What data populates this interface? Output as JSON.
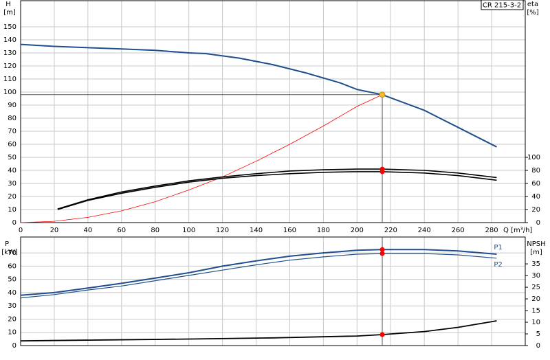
{
  "chart_data": [
    {
      "type": "line",
      "annotation": "CR 215-3-2",
      "y_label": "H",
      "y_unit": "[m]",
      "y2_label": "eta",
      "y2_unit": "[%]",
      "x_label": "Q [m³/h]",
      "xlim": [
        0,
        300
      ],
      "xticks": [
        0,
        20,
        40,
        60,
        80,
        100,
        120,
        140,
        160,
        180,
        200,
        220,
        240,
        260,
        280
      ],
      "ylim": [
        0,
        170
      ],
      "yticks": [
        0,
        10,
        20,
        30,
        40,
        50,
        60,
        70,
        80,
        90,
        100,
        110,
        120,
        130,
        140,
        150
      ],
      "y2lim": [
        0,
        340
      ],
      "y2ticks": [
        0,
        20,
        40,
        60,
        80,
        100
      ],
      "grid": true,
      "operating_point": {
        "x": 215,
        "y": 98,
        "color": "#f5b82e"
      },
      "series": [
        {
          "color": "#1f4e8c",
          "width": 2,
          "x": [
            0,
            20,
            40,
            60,
            80,
            100,
            110,
            130,
            150,
            170,
            190,
            200,
            215,
            240,
            260,
            283
          ],
          "values": [
            136.5,
            135,
            134,
            133,
            132,
            130,
            129.5,
            126,
            121,
            114.5,
            107,
            102,
            98,
            86,
            73,
            58
          ]
        },
        {
          "color": "#ff0000",
          "width": 0.8,
          "x": [
            0,
            20,
            40,
            60,
            80,
            100,
            120,
            140,
            160,
            180,
            200,
            215
          ],
          "values": [
            0,
            1,
            4,
            9,
            16,
            25,
            35,
            47,
            60,
            74,
            89,
            98
          ]
        },
        {
          "color": "#000000",
          "width": 1.6,
          "axis": "y2",
          "x": [
            22,
            40,
            60,
            80,
            100,
            120,
            140,
            160,
            180,
            200,
            215,
            240,
            260,
            283
          ],
          "values": [
            21,
            35,
            47,
            56,
            64,
            70,
            75,
            79,
            81,
            82,
            82,
            80,
            76,
            69
          ]
        },
        {
          "color": "#000000",
          "width": 1.6,
          "axis": "y2",
          "x": [
            22,
            40,
            60,
            80,
            100,
            120,
            140,
            160,
            180,
            200,
            215,
            240,
            260,
            283
          ],
          "values": [
            20,
            34,
            45,
            54,
            62,
            68,
            72,
            75,
            77,
            78,
            78,
            76,
            72,
            65
          ]
        }
      ]
    },
    {
      "type": "line",
      "y_label": "P",
      "y_unit": "[kW]",
      "y2_label": "NPSH",
      "y2_unit": "[m]",
      "xlim": [
        0,
        300
      ],
      "xticks": [
        0,
        20,
        40,
        60,
        80,
        100,
        120,
        140,
        160,
        180,
        200,
        220,
        240,
        260,
        280
      ],
      "xtick_labels": false,
      "ylim": [
        0,
        82
      ],
      "yticks": [
        0,
        10,
        20,
        30,
        40,
        50,
        60,
        70
      ],
      "y2lim": [
        0,
        46.5
      ],
      "y2ticks": [
        0,
        5,
        10,
        15,
        20,
        25,
        30,
        35
      ],
      "grid": true,
      "operating_point": {
        "x": 215
      },
      "series": [
        {
          "name": "P1",
          "color": "#1f4e8c",
          "width": 2,
          "x": [
            0,
            20,
            40,
            60,
            80,
            100,
            120,
            140,
            160,
            180,
            200,
            215,
            240,
            260,
            283
          ],
          "values": [
            38,
            40,
            43.5,
            47,
            51,
            55,
            60,
            64,
            67.5,
            70,
            72,
            72.5,
            72.5,
            71.5,
            69
          ]
        },
        {
          "name": "P2",
          "color": "#1f4e8c",
          "width": 1.2,
          "x": [
            0,
            20,
            40,
            60,
            80,
            100,
            120,
            140,
            160,
            180,
            200,
            215,
            240,
            260,
            283
          ],
          "values": [
            36,
            38.5,
            42,
            45,
            49,
            53,
            57,
            61,
            64.5,
            67,
            69,
            69.5,
            69.5,
            68.5,
            66
          ]
        },
        {
          "color": "#000000",
          "width": 1.8,
          "axis": "y2",
          "x": [
            0,
            50,
            100,
            150,
            200,
            215,
            240,
            260,
            283
          ],
          "values": [
            2,
            2.4,
            2.8,
            3.3,
            4.1,
            4.7,
            6,
            7.8,
            10.6
          ]
        }
      ]
    }
  ]
}
